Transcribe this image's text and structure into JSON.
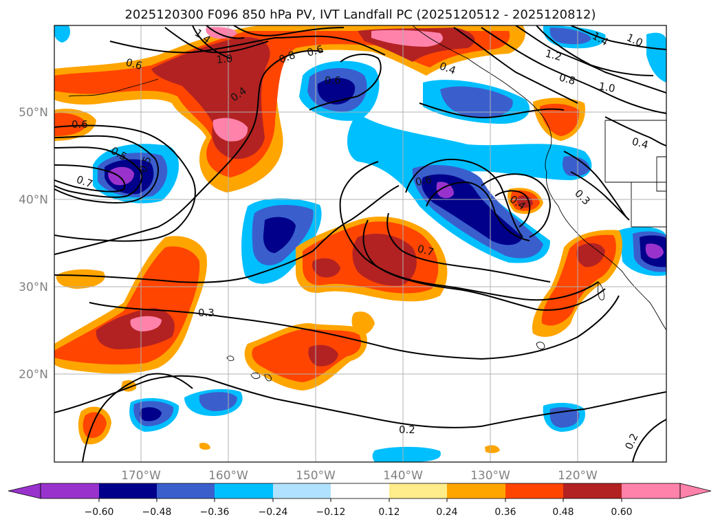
{
  "title": "2025120300 F096 850 hPa PV, IVT Landfall PC (2025120512 - 2025120812)",
  "map": {
    "lat_labels": [
      "50°N",
      "40°N",
      "30°N",
      "20°N"
    ],
    "lon_labels": [
      "170°W",
      "160°W",
      "150°W",
      "140°W",
      "130°W",
      "120°W"
    ],
    "lon_range": [
      -180,
      -110
    ],
    "lat_range": [
      10,
      60
    ],
    "projection": "PlateCarree",
    "gridlines": true
  },
  "colorbar": {
    "ticks": [
      "−0.60",
      "−0.48",
      "−0.36",
      "−0.24",
      "−0.12",
      "0.12",
      "0.24",
      "0.36",
      "0.48",
      "0.60"
    ],
    "levels": [
      -0.6,
      -0.48,
      -0.36,
      -0.24,
      -0.12,
      0.12,
      0.24,
      0.36,
      0.48,
      0.6
    ],
    "colors": {
      "lt_neg_060": "#9932cc",
      "neg_060_048": "#00008b",
      "neg_048_036": "#3a5fcd",
      "neg_036_024": "#00bfff",
      "neg_024_012": "#b0e2ff",
      "neg_012_012": "#ffffff",
      "pos_012_024": "#ffec8b",
      "pos_024_036": "#ffa500",
      "pos_036_048": "#ff4500",
      "pos_048_060": "#b22222",
      "gt_060": "#ff82ab"
    },
    "extend": "both"
  },
  "contour_labels": [
    {
      "text": "0.6"
    },
    {
      "text": "1.4"
    },
    {
      "text": "1.0"
    },
    {
      "text": "0.8"
    },
    {
      "text": "0.6"
    },
    {
      "text": "0.4"
    },
    {
      "text": "0.6"
    },
    {
      "text": "0.6"
    },
    {
      "text": "0.7"
    },
    {
      "text": "0.5"
    },
    {
      "text": "0.5"
    },
    {
      "text": "0.4"
    },
    {
      "text": "0.6"
    },
    {
      "text": "0.7"
    },
    {
      "text": "0.3"
    },
    {
      "text": "0.2"
    },
    {
      "text": "0.2"
    },
    {
      "text": "0.4"
    },
    {
      "text": "0.3"
    },
    {
      "text": "1.2"
    },
    {
      "text": "0.8"
    },
    {
      "text": "1.0"
    },
    {
      "text": "1.4"
    },
    {
      "text": "1.0"
    },
    {
      "text": "0.4"
    }
  ]
}
